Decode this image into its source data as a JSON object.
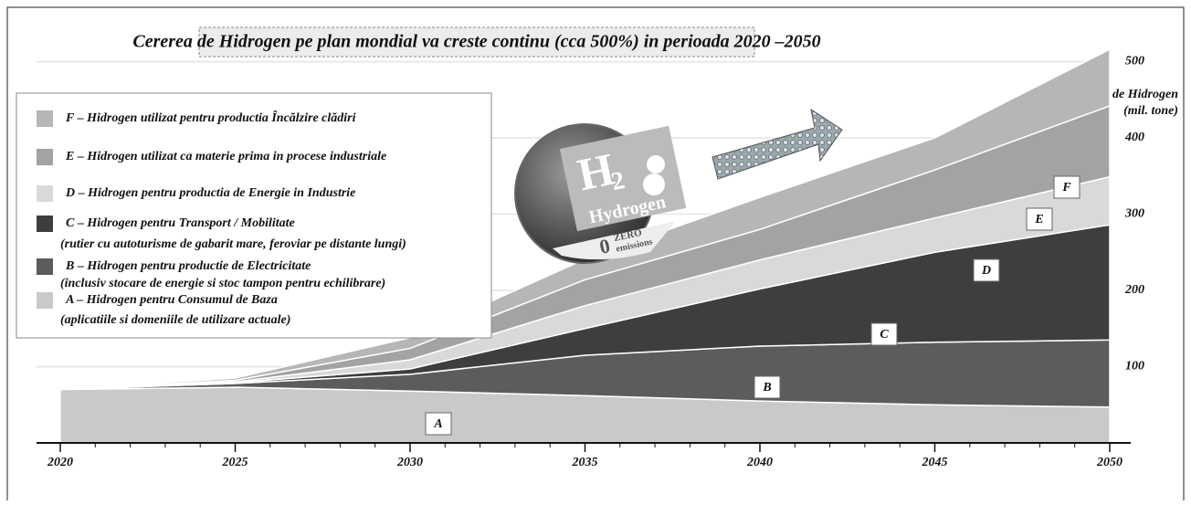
{
  "chart_data": {
    "type": "stacked-area",
    "title": "Cererea de Hidrogen pe plan mondial va creste continu (cca 500%) in perioada 2020 –2050",
    "y_axis_label": [
      "Consumul de Hidrogen",
      "(mil. tone)"
    ],
    "x": [
      2020,
      2025,
      2030,
      2035,
      2040,
      2045,
      2050
    ],
    "xlim": [
      2020,
      2050
    ],
    "xticks": [
      2020,
      2025,
      2030,
      2035,
      2040,
      2045,
      2050
    ],
    "ylim": [
      0,
      500
    ],
    "yticks": [
      100,
      200,
      300,
      400,
      500
    ],
    "grid": true,
    "legend": "top-left",
    "series": [
      {
        "letter": "A",
        "name": "A – Hidrogen pentru Consumul de Baza",
        "description": "(aplicatiile si domeniile de utilizare actuale)",
        "color": "#c9c9c9",
        "values": [
          70,
          73,
          68,
          62,
          55,
          50,
          47
        ]
      },
      {
        "letter": "B",
        "name": "B – Hidrogen pentru productie de Electricitate",
        "description": "(inclusiv stocare de energie si stoc tampon pentru echilibrare)",
        "color": "#5c5c5c",
        "values": [
          0,
          5,
          22,
          53,
          72,
          82,
          88
        ]
      },
      {
        "letter": "C",
        "name": "C – Hidrogen pentru Transport / Mobilitate",
        "description": "(rutier cu autoturisme de gabarit mare, feroviar pe distante lungi)",
        "color": "#3e3e3e",
        "values": [
          0,
          1,
          7,
          35,
          75,
          118,
          151
        ]
      },
      {
        "letter": "D",
        "name": "D – Hidrogen pentru productia de Energie in Industrie",
        "color": "#d9d9d9",
        "values": [
          0,
          1,
          12,
          30,
          38,
          45,
          63
        ]
      },
      {
        "letter": "E",
        "name": "E – Hidrogen utilizat ca materie prima in procese industriale",
        "color": "#a3a3a3",
        "values": [
          0,
          2,
          15,
          34,
          40,
          63,
          93
        ]
      },
      {
        "letter": "F",
        "name": "F – Hidrogen utilizat pentru productia Încălzire clădiri",
        "color": "#b6b6b6",
        "values": [
          0,
          3,
          14,
          27,
          42,
          42,
          74
        ]
      }
    ]
  },
  "image": {
    "symbol": "H",
    "subscript": "2",
    "word": "Hydrogen",
    "badge": "0",
    "badge_top": "ZERO",
    "badge_bottom": "emissions"
  }
}
